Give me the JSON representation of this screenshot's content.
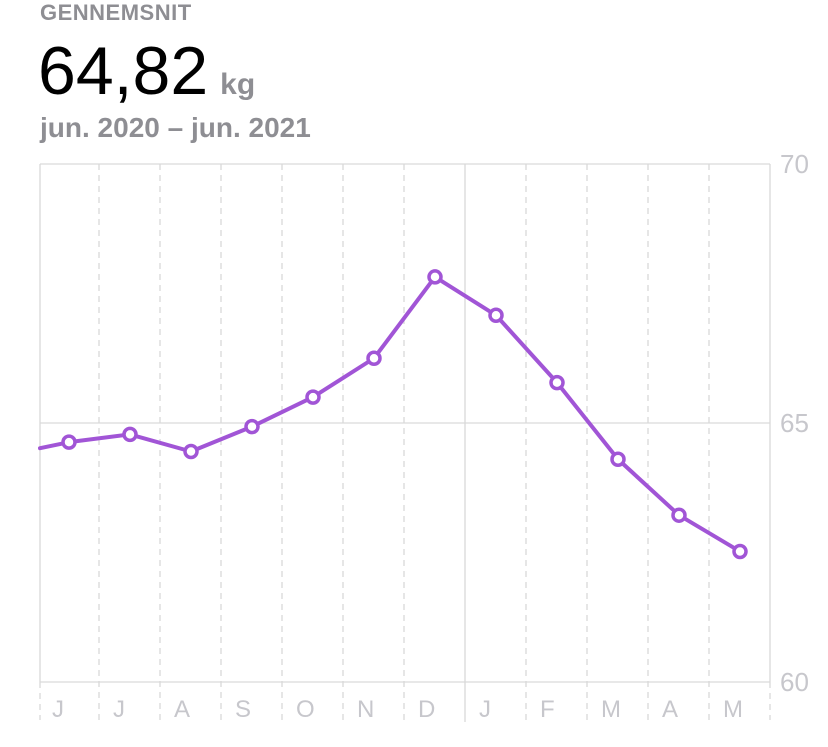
{
  "header": {
    "label": "GENNEMSNIT",
    "value": "64,82",
    "unit": "kg",
    "date_range": "jun. 2020 – jun. 2021"
  },
  "colors": {
    "series": "#a155d6",
    "grid": "#d9d9d9",
    "axis_text": "#c7c7cc"
  },
  "chart_data": {
    "type": "line",
    "title": "",
    "xlabel": "",
    "ylabel": "",
    "categories": [
      "J",
      "J",
      "A",
      "S",
      "O",
      "N",
      "D",
      "J",
      "F",
      "M",
      "A",
      "M"
    ],
    "ylim": [
      60,
      70
    ],
    "y_ticks": [
      "70",
      "65",
      "60"
    ],
    "y_tick_values": [
      70,
      65,
      60
    ],
    "grid": true,
    "series": [
      {
        "values": [
          64.63,
          64.78,
          64.45,
          64.93,
          65.5,
          66.25,
          67.82,
          67.08,
          65.78,
          64.3,
          63.22,
          62.52
        ]
      }
    ]
  }
}
